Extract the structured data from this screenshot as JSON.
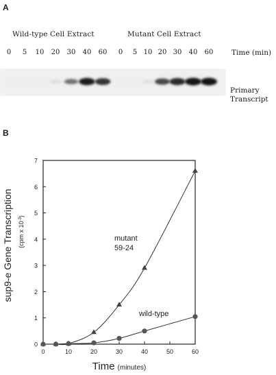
{
  "panel_a": {
    "letter": "A",
    "wild_label": "Wild-type Cell Extract",
    "mutant_label": "Mutant Cell Extract",
    "wild_lanes": [
      "0",
      "5",
      "10",
      "20",
      "30",
      "40",
      "60"
    ],
    "mutant_lanes": [
      "0",
      "5",
      "10",
      "20",
      "30",
      "40",
      "60"
    ],
    "time_label": "Time  (min)",
    "band_label_line1": "Primary",
    "band_label_line2": "Transcript",
    "band_intensity_wild": [
      0,
      0,
      0,
      0.08,
      0.55,
      0.95,
      0.85
    ],
    "band_intensity_mutant": [
      0,
      0,
      0.06,
      0.75,
      0.9,
      1.0,
      1.0
    ]
  },
  "panel_b": {
    "letter": "B",
    "chart_data": {
      "type": "line",
      "xlabel": "Time",
      "xlabel_unit": "(minutes)",
      "ylabel": "sup9-e Gene Transcription",
      "ylabel_unit": "(cpm x 10",
      "ylabel_unit_sup": "-3",
      "ylabel_unit_close": ")",
      "xlim": [
        0,
        60
      ],
      "ylim": [
        0,
        7
      ],
      "xticks": [
        "0",
        "10",
        "20",
        "30",
        "40",
        "50",
        "60"
      ],
      "yticks": [
        "0",
        "1",
        "2",
        "3",
        "4",
        "5",
        "6",
        "7"
      ],
      "grid": false,
      "series": [
        {
          "name": "mutant 59-24",
          "label_line1": "mutant",
          "label_line2": "59-24",
          "marker": "triangle",
          "x": [
            0,
            5,
            10,
            20,
            30,
            40,
            60
          ],
          "y": [
            0,
            0,
            0.02,
            0.45,
            1.5,
            2.9,
            6.6
          ]
        },
        {
          "name": "wild-type",
          "label_line1": "wild-type",
          "marker": "circle",
          "x": [
            0,
            5,
            10,
            20,
            30,
            40,
            60
          ],
          "y": [
            0,
            0,
            0.02,
            0.05,
            0.22,
            0.5,
            1.05
          ]
        }
      ]
    }
  }
}
